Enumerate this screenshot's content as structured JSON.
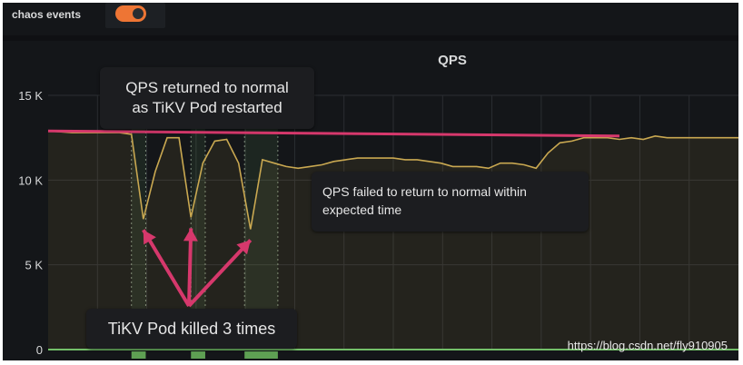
{
  "chaos_toggle": {
    "label": "chaos events",
    "state": "on",
    "accent": "#ee7534"
  },
  "panel": {
    "title": "QPS"
  },
  "chart_data": {
    "type": "line",
    "title": "QPS",
    "ylim": [
      0,
      15000
    ],
    "y_ticks": [
      "0",
      "5 K",
      "10 K",
      "15 K"
    ],
    "grid": true,
    "series": [
      {
        "color": "#c9a851",
        "x": [
          0,
          2,
          4,
          6,
          7,
          8,
          9,
          10,
          11,
          12,
          13,
          14,
          15,
          16,
          17,
          18,
          19,
          20,
          21,
          22,
          23,
          24,
          25,
          26,
          27,
          28,
          29,
          30,
          31,
          32,
          33,
          34,
          35,
          36,
          37,
          38,
          39,
          40,
          41,
          42,
          43,
          44,
          45,
          46,
          47,
          48,
          49,
          50,
          51,
          52,
          53,
          54,
          55,
          56,
          57,
          58
        ],
        "values": [
          12900,
          12800,
          12800,
          12800,
          12700,
          7700,
          10500,
          12500,
          12500,
          7800,
          11000,
          12300,
          12400,
          11000,
          7100,
          11200,
          11000,
          10800,
          10700,
          10800,
          10900,
          11100,
          11200,
          11300,
          11300,
          11300,
          11300,
          11200,
          11200,
          11100,
          11000,
          10800,
          10800,
          10800,
          10700,
          11000,
          11000,
          10900,
          10700,
          11600,
          12200,
          12300,
          12500,
          12500,
          12500,
          12400,
          12500,
          12400,
          12600,
          12500,
          12500,
          12500,
          12500,
          12500,
          12500,
          12500
        ]
      }
    ],
    "baseline": {
      "color": "#d6386c",
      "value": 12600
    },
    "chaos_events": [
      {
        "start": 7,
        "end": 8.2
      },
      {
        "start": 12,
        "end": 13.2
      },
      {
        "start": 16.5,
        "end": 19.3
      }
    ]
  },
  "annotations": {
    "returned_line1": "QPS returned to normal",
    "returned_line2": "as TiKV Pod restarted",
    "failed_line1": "QPS failed to return to normal within",
    "failed_line2": "expected time",
    "killed": "TiKV Pod killed 3 times"
  },
  "watermark": "https://blog.csdn.net/fly910905"
}
